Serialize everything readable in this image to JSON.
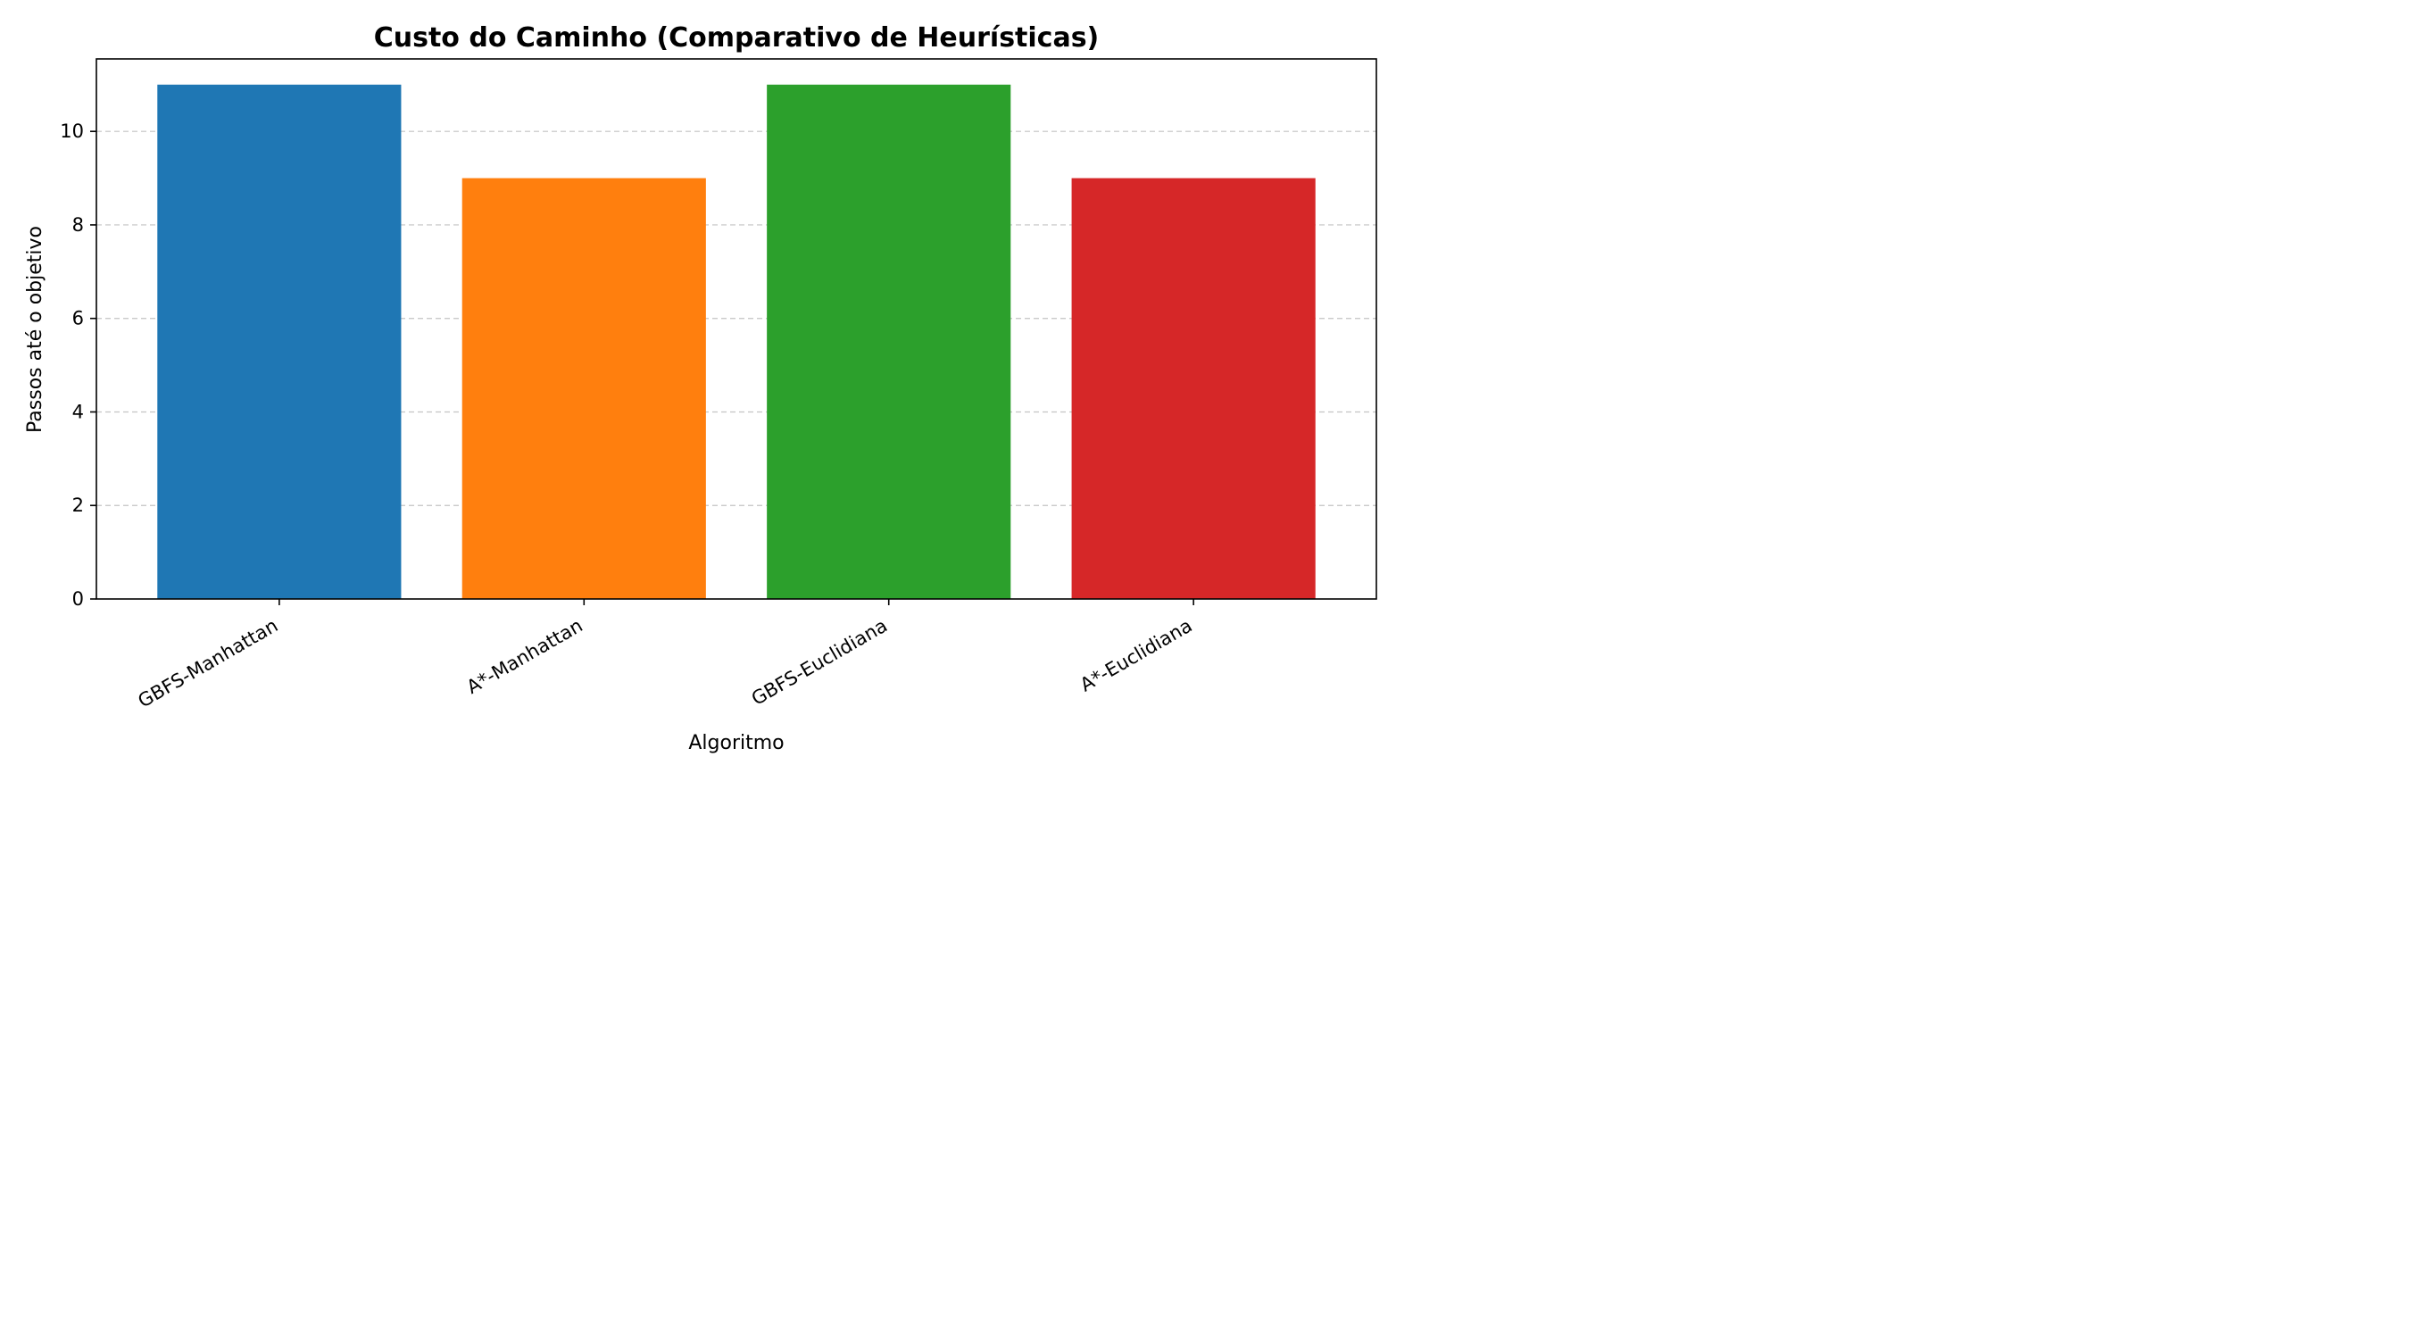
{
  "chart_data": {
    "type": "bar",
    "title": "Custo do Caminho (Comparativo de Heurísticas)",
    "xlabel": "Algoritmo",
    "ylabel": "Passos até o objetivo",
    "categories": [
      "GBFS-Manhattan",
      "A*-Manhattan",
      "GBFS-Euclidiana",
      "A*-Euclidiana"
    ],
    "values": [
      11,
      9,
      11,
      9
    ],
    "colors": [
      "#1f77b4",
      "#ff7f0e",
      "#2ca02c",
      "#d62728"
    ],
    "ylim": [
      0,
      11.55
    ],
    "yticks": [
      0,
      2,
      4,
      6,
      8,
      10
    ],
    "grid": "y-dashed",
    "legend": "none"
  }
}
